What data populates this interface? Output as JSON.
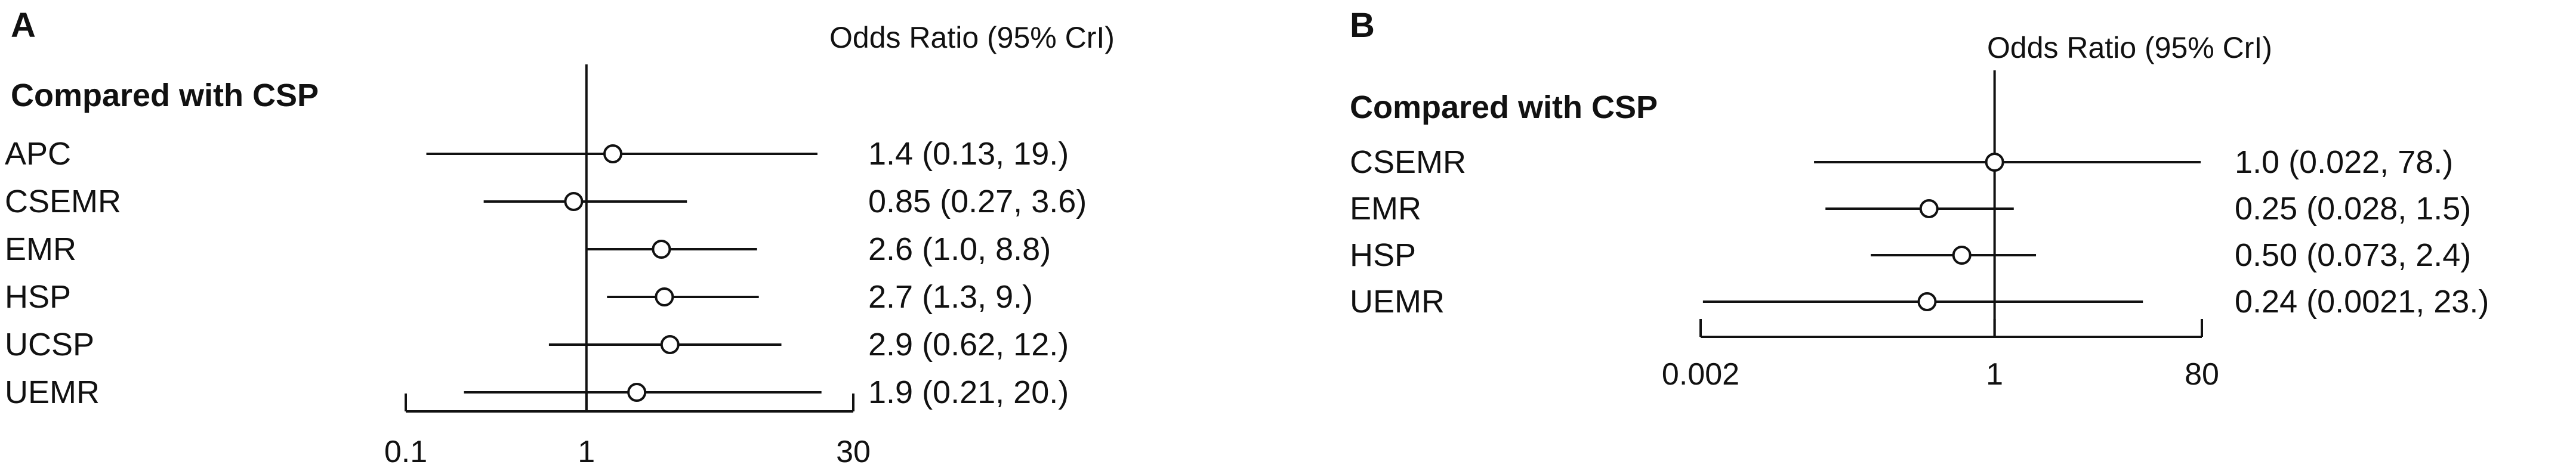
{
  "chart_data": [
    {
      "type": "forest",
      "panel": "A",
      "header": "Odds Ratio (95% CrI)",
      "subtitle": "Compared with CSP",
      "scale": "log",
      "xlim": [
        0.1,
        30
      ],
      "reference": 1,
      "ticks": [
        {
          "value": 0.1,
          "label": "0.1"
        },
        {
          "value": 1,
          "label": "1"
        },
        {
          "value": 30,
          "label": "30"
        }
      ],
      "rows": [
        {
          "label": "APC",
          "or": 1.4,
          "lo": 0.13,
          "hi": 19,
          "text": "1.4 (0.13,   19.)"
        },
        {
          "label": "CSEMR",
          "or": 0.85,
          "lo": 0.27,
          "hi": 3.6,
          "text": "0.85 (0.27, 3.6)"
        },
        {
          "label": "EMR",
          "or": 2.6,
          "lo": 1.0,
          "hi": 8.8,
          "text": "2.6 (1.0, 8.8)"
        },
        {
          "label": "HSP",
          "or": 2.7,
          "lo": 1.3,
          "hi": 9,
          "text": "2.7 (1.3,  9.)"
        },
        {
          "label": "UCSP",
          "or": 2.9,
          "lo": 0.62,
          "hi": 12,
          "text": "2.9 (0.62, 12.)"
        },
        {
          "label": "UEMR",
          "or": 1.9,
          "lo": 0.21,
          "hi": 20,
          "text": "1.9 (0.21, 20.)"
        }
      ]
    },
    {
      "type": "forest",
      "panel": "B",
      "header": "Odds Ratio (95% CrI)",
      "subtitle": "Compared with CSP",
      "scale": "log",
      "xlim": [
        0.002,
        80
      ],
      "reference": 1,
      "ticks": [
        {
          "value": 0.002,
          "label": "0.002"
        },
        {
          "value": 1,
          "label": "1"
        },
        {
          "value": 80,
          "label": "80"
        }
      ],
      "rows": [
        {
          "label": "CSEMR",
          "or": 1.0,
          "lo": 0.022,
          "hi": 78,
          "text": "1.0 (0.022,   78.)"
        },
        {
          "label": "EMR",
          "or": 0.25,
          "lo": 0.028,
          "hi": 1.5,
          "text": "0.25 (0.028, 1.5)"
        },
        {
          "label": "HSP",
          "or": 0.5,
          "lo": 0.073,
          "hi": 2.4,
          "text": "0.50 (0.073, 2.4)"
        },
        {
          "label": "UEMR",
          "or": 0.24,
          "lo": 0.0021,
          "hi": 23,
          "text": "0.24 (0.0021, 23.)"
        }
      ]
    }
  ]
}
